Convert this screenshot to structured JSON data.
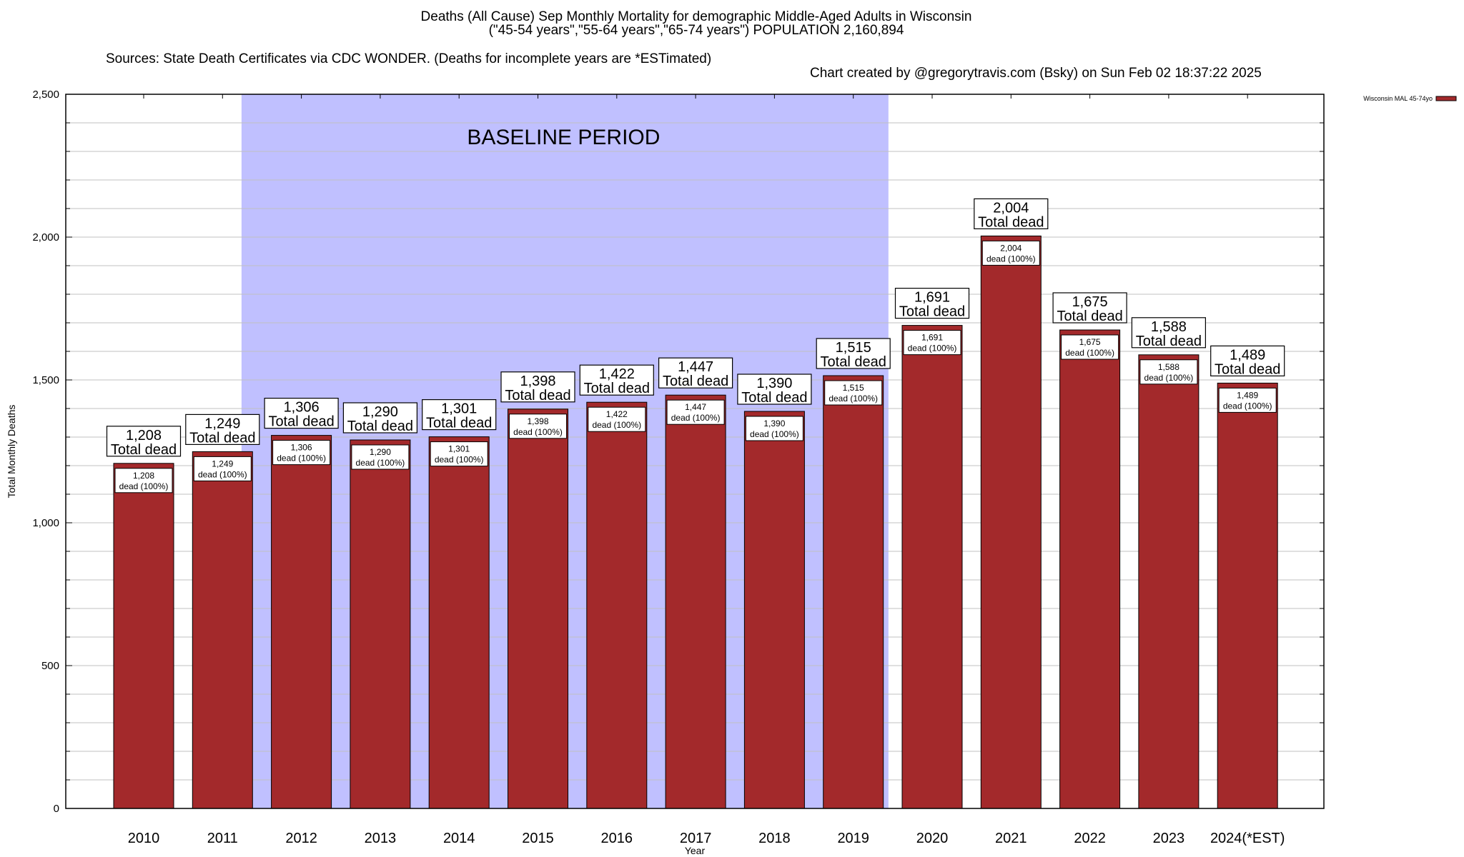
{
  "header": {
    "title": "Deaths (All Cause) Sep Monthly Mortality for demographic Middle-Aged Adults in Wisconsin",
    "subtitle": "(\"45-54 years\",\"55-64 years\",\"65-74 years\") POPULATION 2,160,894",
    "sources": "Sources: State Death Certificates via CDC WONDER. (Deaths for incomplete years are *ESTimated)",
    "credit": "Chart created by @gregorytravis.com (Bsky) on Sun Feb 02 18:37:22 2025"
  },
  "colors": {
    "bar": "#a3292b",
    "baseline_shade": "#c0c0ff",
    "grid": "#c0c0c0",
    "axis": "#000000"
  },
  "chart_data": {
    "type": "bar",
    "title": "Deaths (All Cause) Sep Monthly Mortality for demographic Middle-Aged Adults in Wisconsin",
    "xlabel": "Year",
    "ylabel": "Total Monthly Deaths",
    "ylim": [
      0,
      2500
    ],
    "yticks": [
      0,
      500,
      1000,
      1500,
      2000,
      2500
    ],
    "ytick_labels": [
      "0",
      "500",
      "1,000",
      "1,500",
      "2,000",
      "2,500"
    ],
    "minor_grid_step": 100,
    "grid": true,
    "categories": [
      "2010",
      "2011",
      "2012",
      "2013",
      "2014",
      "2015",
      "2016",
      "2017",
      "2018",
      "2019",
      "2020",
      "2021",
      "2022",
      "2023",
      "2024(*EST)"
    ],
    "series": [
      {
        "name": "Wisconsin MAL 45-74yo",
        "values": [
          1208,
          1249,
          1306,
          1290,
          1301,
          1398,
          1422,
          1447,
          1390,
          1515,
          1691,
          2004,
          1675,
          1588,
          1489
        ]
      }
    ],
    "total_labels": [
      "1,208",
      "1,249",
      "1,306",
      "1,290",
      "1,301",
      "1,398",
      "1,422",
      "1,447",
      "1,390",
      "1,515",
      "1,691",
      "2,004",
      "1,675",
      "1,588",
      "1,489"
    ],
    "total_suffix": "Total dead",
    "inner_suffix": "dead (100%)",
    "legend": {
      "position": "top-right",
      "entries": [
        "Wisconsin MAL 45-74yo"
      ]
    },
    "annotation": {
      "text": "BASELINE PERIOD",
      "start_category": "2012",
      "end_category": "2019"
    }
  }
}
